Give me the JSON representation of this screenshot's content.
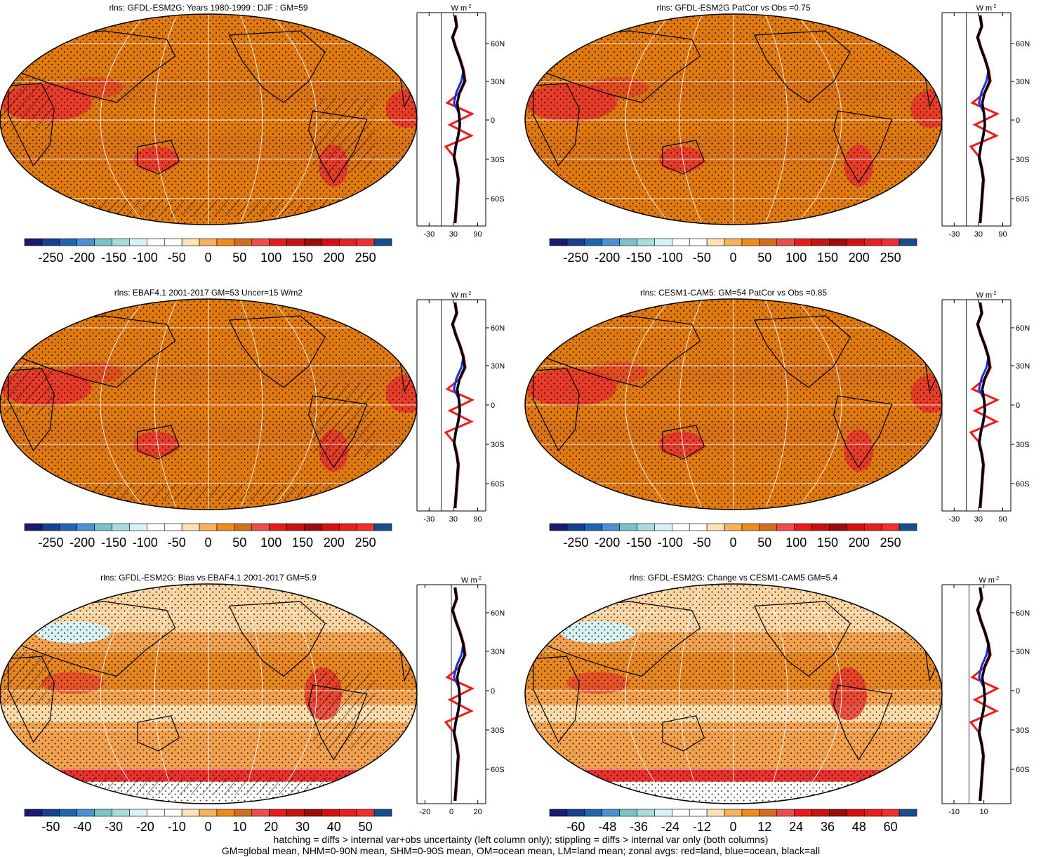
{
  "figure": {
    "panels": [
      {
        "title": "rlns: GFDL-ESM2G: Years 1980-1999 : DJF : GM=59",
        "colorbar": [
          "-250",
          "-200",
          "-150",
          "-100",
          "-50",
          "0",
          "50",
          "100",
          "150",
          "200",
          "250"
        ],
        "zonal": {
          "xticks": [
            "-30",
            "30",
            "90"
          ],
          "xrange": [
            -60,
            110
          ],
          "units": "W m-2"
        }
      },
      {
        "title": "rlns: GFDL-ESM2G PatCor vs Obs =0.75",
        "colorbar": [
          "-250",
          "-200",
          "-150",
          "-100",
          "-50",
          "0",
          "50",
          "100",
          "150",
          "200",
          "250"
        ],
        "zonal": {
          "xticks": [
            "-30",
            "30",
            "90"
          ],
          "xrange": [
            -60,
            110
          ],
          "units": "W m-2"
        }
      },
      {
        "title": "rlns: EBAF4.1 2001-2017 GM=53 Uncer=15 W/m2",
        "colorbar": [
          "-250",
          "-200",
          "-150",
          "-100",
          "-50",
          "0",
          "50",
          "100",
          "150",
          "200",
          "250"
        ],
        "zonal": {
          "xticks": [
            "-30",
            "30",
            "90"
          ],
          "xrange": [
            -60,
            110
          ],
          "units": "W m-2"
        }
      },
      {
        "title": "rlns: CESM1-CAM5: GM=54 PatCor vs Obs =0.85",
        "colorbar": [
          "-250",
          "-200",
          "-150",
          "-100",
          "-50",
          "0",
          "50",
          "100",
          "150",
          "200",
          "250"
        ],
        "zonal": {
          "xticks": [
            "-30",
            "30",
            "90"
          ],
          "xrange": [
            -60,
            110
          ],
          "units": "W m-2"
        }
      },
      {
        "title": "rlns: GFDL-ESM2G: Bias vs EBAF4.1 2001-2017 GM=5.9",
        "colorbar": [
          "-50",
          "-40",
          "-30",
          "-20",
          "-10",
          "0",
          "10",
          "20",
          "30",
          "40",
          "50"
        ],
        "zonal": {
          "xticks": [
            "-20",
            "0",
            "20"
          ],
          "xrange": [
            -26,
            26
          ],
          "units": "W m-2"
        }
      },
      {
        "title": "rlns: GFDL-ESM2G: Change vs CESM1-CAM5 GM=5.4",
        "colorbar": [
          "-60",
          "-48",
          "-36",
          "-24",
          "-12",
          "0",
          "12",
          "24",
          "36",
          "48",
          "60"
        ],
        "zonal": {
          "xticks": [
            "-10",
            "10"
          ],
          "xrange": [
            -18,
            28
          ],
          "units": "W m-2"
        }
      }
    ],
    "lat_ticks": [
      "60N",
      "30N",
      "0",
      "30S",
      "60S"
    ],
    "colors": {
      "diverging": [
        "#1a1a6e",
        "#15418f",
        "#1f66b0",
        "#4a92d2",
        "#7cc1c4",
        "#a9dcdc",
        "#d6f2f2",
        "#ffffff",
        "#ffffff",
        "#fde2b6",
        "#f8b25e",
        "#ee8a1e",
        "#d0701f",
        "#ec4e4e",
        "#e81a1a",
        "#c71212",
        "#9e0b0b",
        "#d41010",
        "#e42020",
        "#f03030",
        "#174e8c"
      ],
      "ocean_base": "#e07a0e",
      "land_warm": "#d06a1f",
      "red_zone": "#e8322c",
      "zonal_land": "#ee1c1c",
      "zonal_ocean": "#1a2ee6",
      "zonal_all": "#000000"
    },
    "caption": [
      "hatching = diffs > internal var+obs uncertainty (left column only); stippling = diffs > internal var only (both columns)",
      "GM=global mean, NHM=0-90N mean, SHM=0-90S mean, OM=ocean mean, LM=land mean; zonal avgs: red=land, blue=ocean, black=all"
    ]
  }
}
